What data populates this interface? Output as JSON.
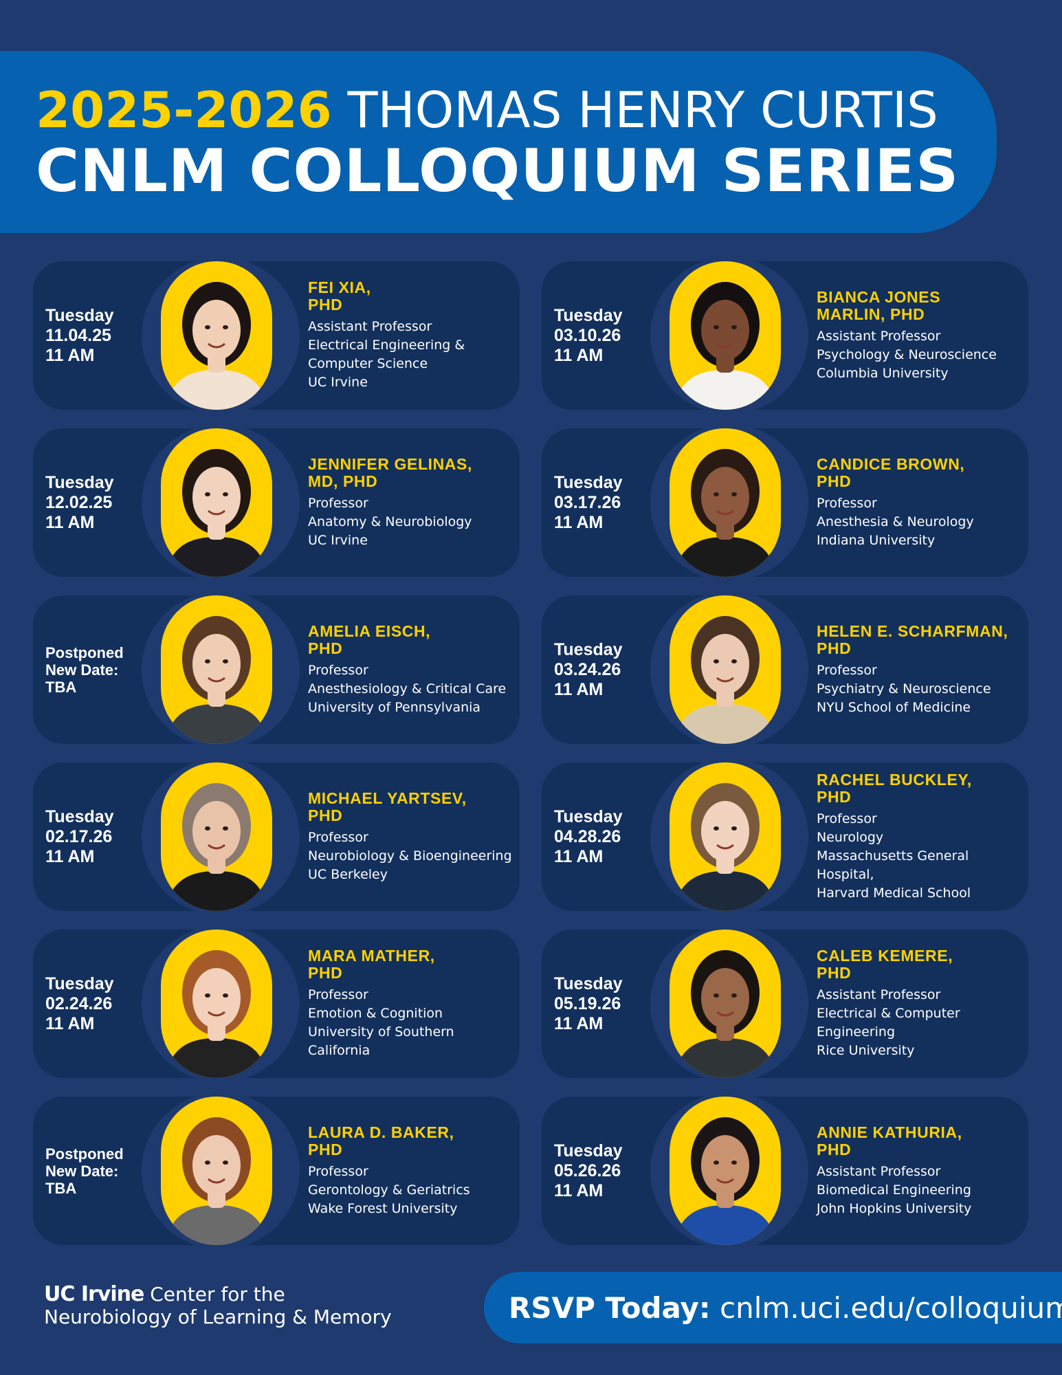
{
  "header": {
    "year": "2025-2026",
    "series_name": "THOMAS HENRY CURTIS",
    "title": "CNLM COLLOQUIUM SERIES"
  },
  "speakers": [
    {
      "date": "Tuesday\n11.04.25\n11 AM",
      "name_line1": "FEI XIA,",
      "name_line2": "PHD",
      "details": [
        "Assistant Professor",
        "Electrical Engineering &",
        "Computer Science",
        "UC Irvine"
      ]
    },
    {
      "date": "Tuesday\n03.10.26\n11 AM",
      "name_line1": "BIANCA JONES",
      "name_line2": "MARLIN, PHD",
      "details": [
        "Assistant Professor",
        "Psychology & Neuroscience",
        "Columbia University"
      ]
    },
    {
      "date": "Tuesday\n12.02.25\n11 AM",
      "name_line1": "JENNIFER GELINAS,",
      "name_line2": "MD, PHD",
      "details": [
        "Professor",
        "Anatomy & Neurobiology",
        "UC Irvine"
      ]
    },
    {
      "date": "Tuesday\n03.17.26\n11 AM",
      "name_line1": "CANDICE BROWN,",
      "name_line2": "PHD",
      "details": [
        "Professor",
        "Anesthesia & Neurology",
        "Indiana University"
      ]
    },
    {
      "date": "Postponed\nNew Date:\nTBA",
      "name_line1": "AMELIA EISCH,",
      "name_line2": "PHD",
      "details": [
        "Professor",
        "Anesthesiology & Critical Care",
        "University of Pennsylvania"
      ]
    },
    {
      "date": "Tuesday\n03.24.26\n11 AM",
      "name_line1": "HELEN E. SCHARFMAN,",
      "name_line2": "PHD",
      "details": [
        "Professor",
        "Psychiatry & Neuroscience",
        "NYU School of Medicine"
      ]
    },
    {
      "date": "Tuesday\n02.17.26\n11 AM",
      "name_line1": "MICHAEL YARTSEV,",
      "name_line2": "PHD",
      "details": [
        "Professor",
        "Neurobiology & Bioengineering",
        "UC Berkeley"
      ]
    },
    {
      "date": "Tuesday\n04.28.26\n11 AM",
      "name_line1": "RACHEL BUCKLEY,",
      "name_line2": "PHD",
      "details": [
        "Professor",
        "Neurology",
        "Massachusetts General Hospital,",
        "Harvard Medical School"
      ]
    },
    {
      "date": "Tuesday\n02.24.26\n11 AM",
      "name_line1": "MARA MATHER,",
      "name_line2": "PHD",
      "details": [
        "Professor",
        "Emotion & Cognition",
        "University of Southern California"
      ]
    },
    {
      "date": "Tuesday\n05.19.26\n11 AM",
      "name_line1": "CALEB KEMERE,",
      "name_line2": "PHD",
      "details": [
        "Assistant Professor",
        "Electrical & Computer",
        "Engineering",
        "Rice University"
      ]
    },
    {
      "date": "Postponed\nNew Date:\nTBA",
      "name_line1": "LAURA D. BAKER,",
      "name_line2": "PHD",
      "details": [
        "Professor",
        "Gerontology & Geriatrics",
        "Wake Forest University"
      ]
    },
    {
      "date": "Tuesday\n05.26.26\n11 AM",
      "name_line1": "ANNIE KATHURIA,",
      "name_line2": "PHD",
      "details": [
        "Assistant Professor",
        "Biomedical Engineering",
        "John Hopkins University"
      ]
    }
  ],
  "footer": {
    "brand": "UC Irvine",
    "org_line1": "Center for the",
    "org_line2": "Neurobiology of Learning & Memory",
    "rsvp_label": "RSVP Today:",
    "rsvp_url": "cnlm.uci.edu/colloquium"
  },
  "colors": {
    "background": "#1e3a6e",
    "card": "#13305c",
    "header_band": "#0662b0",
    "accent_yellow": "#ffd100"
  }
}
